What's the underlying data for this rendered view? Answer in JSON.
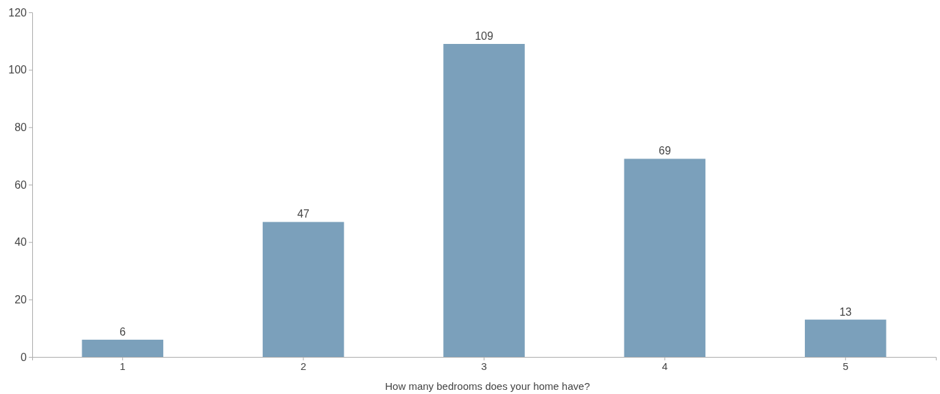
{
  "chart_data": {
    "type": "bar",
    "xlabel": "How many bedrooms does your home have?",
    "categories": [
      "1",
      "2",
      "3",
      "4",
      "5"
    ],
    "values": [
      6,
      47,
      109,
      69,
      13
    ],
    "color": "#7ba0bb",
    "ylim": [
      0,
      120
    ],
    "yticks": [
      0,
      20,
      40,
      60,
      80,
      100,
      120
    ],
    "data_labels": true,
    "grid": false
  }
}
